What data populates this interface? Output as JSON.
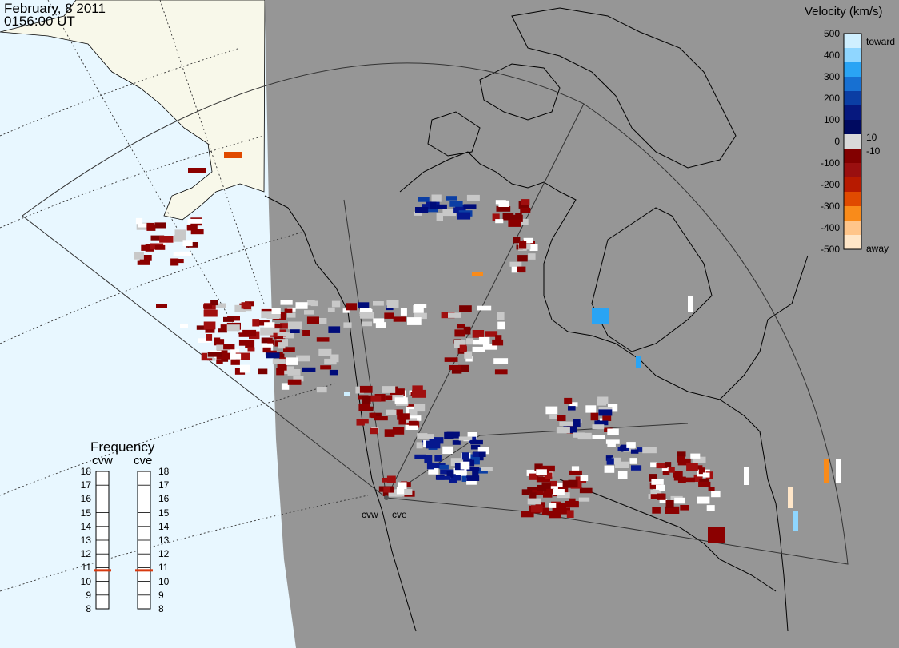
{
  "header": {
    "date": "February, 8 2011",
    "time": "0156:00 UT"
  },
  "colorbar": {
    "title": "Velocity (km/s)",
    "ticks": [
      "500",
      "400",
      "300",
      "200",
      "100",
      "0",
      "-100",
      "-200",
      "-300",
      "-400",
      "-500"
    ],
    "toward_label": "toward",
    "away_label": "away",
    "plus_threshold": "10",
    "minus_threshold": "-10",
    "colors": [
      "#cfefff",
      "#8fd6ff",
      "#2aa4f4",
      "#1770d2",
      "#0b3ea4",
      "#06187e",
      "#000a60",
      "#d9d9d9",
      "#820000",
      "#9a0f0f",
      "#b71a00",
      "#e04a00",
      "#f98b1a",
      "#ffc58a",
      "#ffe6c8"
    ]
  },
  "frequency": {
    "title": "Frequency",
    "radars": [
      {
        "name": "cvw",
        "value": 10.8
      },
      {
        "name": "cve",
        "value": 10.8
      }
    ],
    "ticks": [
      "18",
      "17",
      "16",
      "15",
      "14",
      "13",
      "12",
      "11",
      "10",
      "9",
      "8"
    ]
  },
  "radar_labels": {
    "west": "cvw",
    "east": "cve"
  },
  "map_colors": {
    "ocean": "#e8f7ff",
    "land": "#f8f8ea",
    "night": "#969696",
    "ground_scatter": "#c8c8c8"
  }
}
